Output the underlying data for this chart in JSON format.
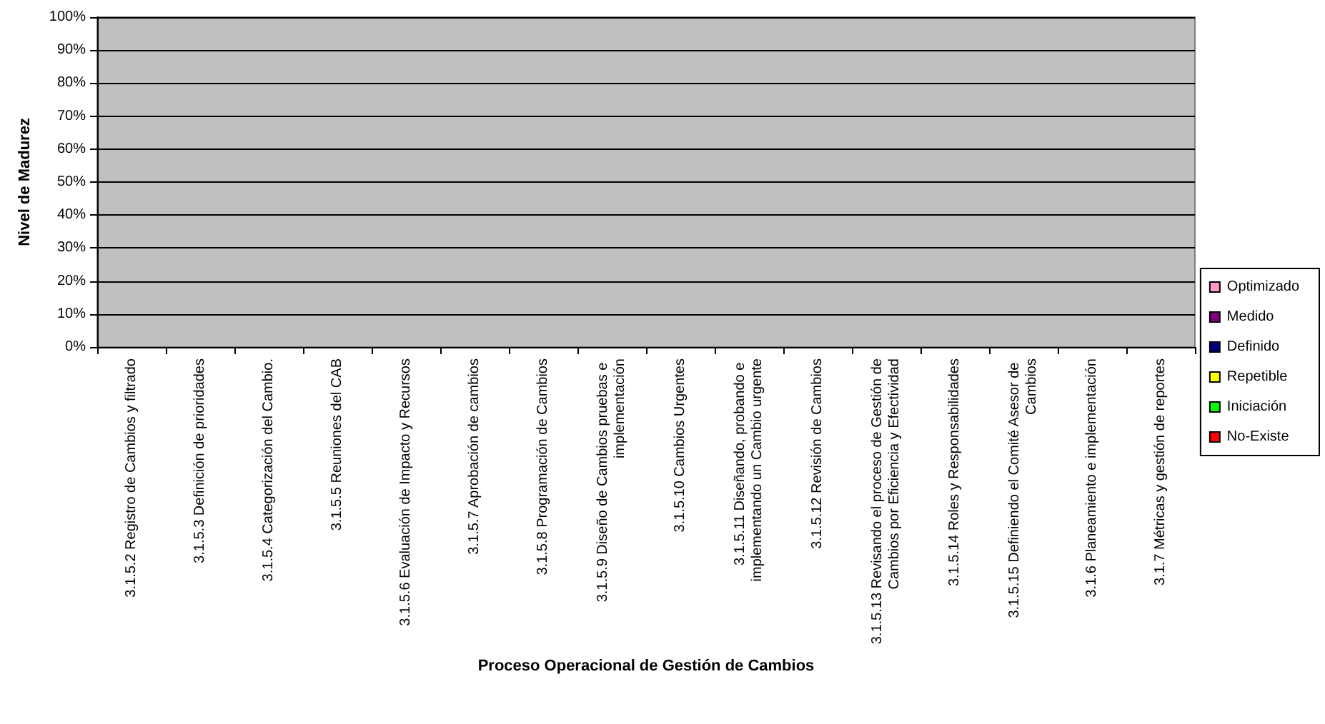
{
  "chart_data": {
    "type": "bar",
    "xlabel": "Proceso Operacional de Gestión de Cambios",
    "ylabel": "Nivel de Madurez",
    "categories": [
      "3.1.5.2 Registro de Cambios y filtrado",
      "3.1.5.3 Definición de prioridades",
      "3.1.5.4 Categorización del Cambio.",
      "3.1.5.5 Reuniones del CAB",
      "3.1.5.6 Evaluación de Impacto y Recursos",
      "3.1.5.7 Aprobación de cambios",
      "3.1.5.8 Programación de Cambios",
      "3.1.5.9 Diseño de Cambios pruebas e implementación",
      "3.1.5.10 Cambios Urgentes",
      "3.1.5.11 Diseñando, probando e implementando un Cambio urgente",
      "3.1.5.12 Revisión de Cambios",
      "3.1.5.13 Revisando el proceso de Gestión de Cambios por Eficiencia y Efectividad",
      "3.1.5.14 Roles y Responsabilidades",
      "3.1.5.15 Definiendo el Comité Asesor de Cambios",
      "3.1.6 Planeamiento e implementación",
      "3.1.7 Métricas y gestión de reportes"
    ],
    "series": [
      {
        "name": "No-Existe",
        "color": "#ff0000",
        "values": [
          null,
          null,
          null,
          null,
          null,
          null,
          null,
          null,
          null,
          null,
          null,
          null,
          null,
          null,
          null,
          null
        ]
      },
      {
        "name": "Iniciación",
        "color": "#00ff00",
        "values": [
          null,
          null,
          null,
          null,
          null,
          null,
          null,
          null,
          null,
          null,
          null,
          null,
          null,
          null,
          null,
          null
        ]
      },
      {
        "name": "Repetible",
        "color": "#ffff00",
        "values": [
          null,
          null,
          null,
          null,
          null,
          null,
          null,
          null,
          null,
          null,
          null,
          null,
          null,
          null,
          null,
          null
        ]
      },
      {
        "name": "Definido",
        "color": "#000080",
        "values": [
          null,
          null,
          null,
          null,
          null,
          null,
          null,
          null,
          null,
          null,
          null,
          null,
          null,
          null,
          null,
          null
        ]
      },
      {
        "name": "Medido",
        "color": "#800080",
        "values": [
          null,
          null,
          null,
          null,
          null,
          null,
          null,
          null,
          null,
          null,
          null,
          null,
          null,
          null,
          null,
          null
        ]
      },
      {
        "name": "Optimizado",
        "color": "#ff99cc",
        "values": [
          null,
          null,
          null,
          null,
          null,
          null,
          null,
          null,
          null,
          null,
          null,
          null,
          null,
          null,
          null,
          null
        ]
      }
    ],
    "ylim": [
      0,
      100
    ],
    "yticks": [
      {
        "value": 0,
        "label": "0%"
      },
      {
        "value": 10,
        "label": "10%"
      },
      {
        "value": 20,
        "label": "20%"
      },
      {
        "value": 30,
        "label": "30%"
      },
      {
        "value": 40,
        "label": "40%"
      },
      {
        "value": 50,
        "label": "50%"
      },
      {
        "value": 60,
        "label": "60%"
      },
      {
        "value": 70,
        "label": "70%"
      },
      {
        "value": 80,
        "label": "80%"
      },
      {
        "value": 90,
        "label": "90%"
      },
      {
        "value": 100,
        "label": "100%"
      }
    ],
    "grid": "y",
    "legend": "right"
  }
}
